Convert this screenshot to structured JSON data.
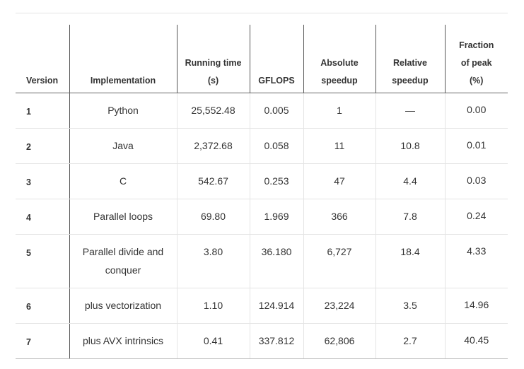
{
  "table": {
    "headers": {
      "version": "Version",
      "implementation": "Implementation",
      "running_time_line1": "Running time",
      "running_time_line2": "(s)",
      "gflops": "GFLOPS",
      "absolute_line1": "Absolute",
      "absolute_line2": "speedup",
      "relative_line1": "Relative",
      "relative_line2": "speedup",
      "fraction_line1": "Fraction",
      "fraction_line2": "of peak",
      "fraction_line3": "(%)"
    },
    "rows": [
      {
        "version": "1",
        "implementation": "Python",
        "running_time": "25,552.48",
        "gflops": "0.005",
        "absolute_speedup": "1",
        "relative_speedup": "—",
        "fraction_of_peak": "0.00"
      },
      {
        "version": "2",
        "implementation": "Java",
        "running_time": "2,372.68",
        "gflops": "0.058",
        "absolute_speedup": "11",
        "relative_speedup": "10.8",
        "fraction_of_peak": "0.01"
      },
      {
        "version": "3",
        "implementation": "C",
        "running_time": "542.67",
        "gflops": "0.253",
        "absolute_speedup": "47",
        "relative_speedup": "4.4",
        "fraction_of_peak": "0.03"
      },
      {
        "version": "4",
        "implementation": "Parallel loops",
        "running_time": "69.80",
        "gflops": "1.969",
        "absolute_speedup": "366",
        "relative_speedup": "7.8",
        "fraction_of_peak": "0.24"
      },
      {
        "version": "5",
        "implementation": "Parallel divide and conquer",
        "running_time": "3.80",
        "gflops": "36.180",
        "absolute_speedup": "6,727",
        "relative_speedup": "18.4",
        "fraction_of_peak": "4.33"
      },
      {
        "version": "6",
        "implementation": "plus vectorization",
        "running_time": "1.10",
        "gflops": "124.914",
        "absolute_speedup": "23,224",
        "relative_speedup": "3.5",
        "fraction_of_peak": "14.96"
      },
      {
        "version": "7",
        "implementation": "plus AVX intrinsics",
        "running_time": "0.41",
        "gflops": "337.812",
        "absolute_speedup": "62,806",
        "relative_speedup": "2.7",
        "fraction_of_peak": "40.45"
      }
    ]
  }
}
